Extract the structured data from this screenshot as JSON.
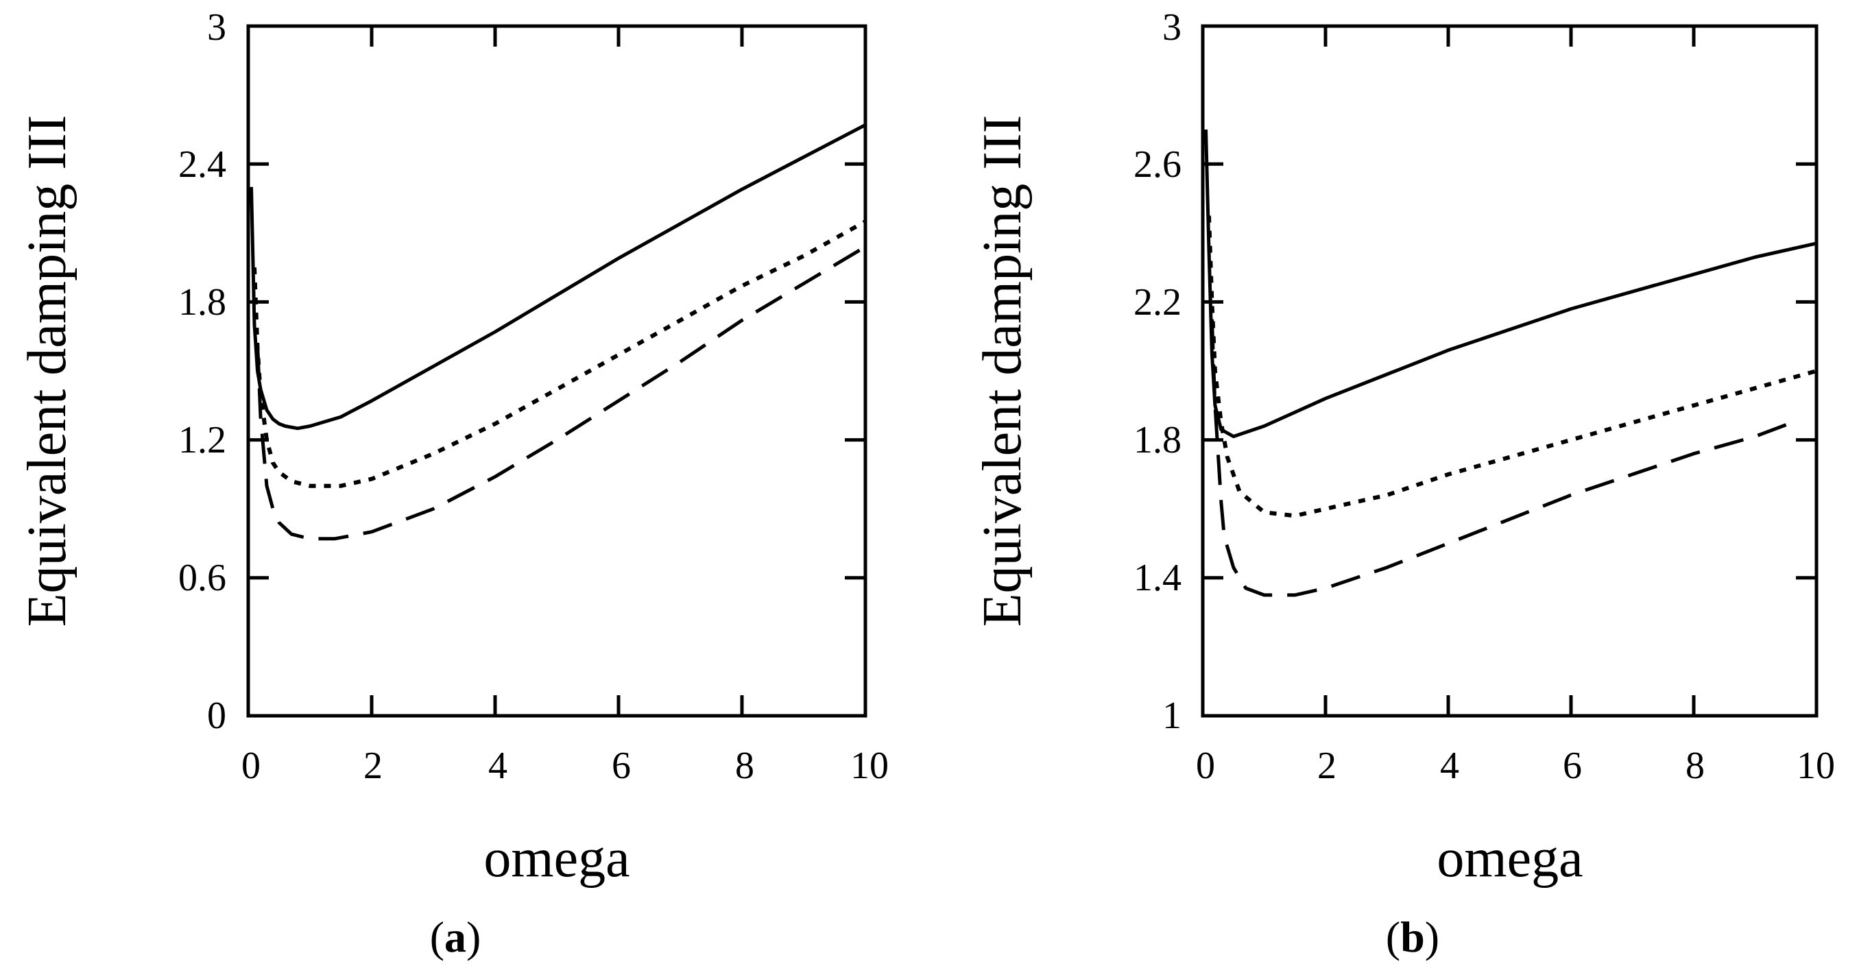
{
  "chart_data": [
    {
      "type": "line",
      "panel": "a",
      "caption_open": "(",
      "caption_letter": "a",
      "caption_close": ")",
      "xlabel": "omega",
      "ylabel": "Equivalent damping III",
      "xlim": [
        0,
        10
      ],
      "ylim": [
        0,
        3
      ],
      "xticks": [
        0,
        2,
        4,
        6,
        8,
        10
      ],
      "xtick_labels": [
        "0",
        "2",
        "4",
        "6",
        "8",
        "10"
      ],
      "yticks": [
        0,
        0.6,
        1.2,
        1.8,
        2.4,
        3
      ],
      "ytick_labels": [
        "0",
        "0.6",
        "1.2",
        "1.8",
        "2.4",
        "3"
      ],
      "series": [
        {
          "name": "solid",
          "style": "solid",
          "x": [
            0.05,
            0.1,
            0.15,
            0.2,
            0.3,
            0.4,
            0.5,
            0.6,
            0.8,
            1,
            1.5,
            2,
            3,
            4,
            5,
            6,
            7,
            8,
            9,
            10
          ],
          "y": [
            2.3,
            1.7,
            1.5,
            1.42,
            1.33,
            1.29,
            1.27,
            1.26,
            1.25,
            1.26,
            1.3,
            1.37,
            1.52,
            1.67,
            1.83,
            1.99,
            2.14,
            2.29,
            2.43,
            2.57
          ]
        },
        {
          "name": "dotted",
          "style": "dotted",
          "x": [
            0.1,
            0.15,
            0.2,
            0.3,
            0.4,
            0.5,
            0.7,
            1,
            1.5,
            2,
            3,
            4,
            5,
            6,
            7,
            8,
            9,
            10
          ],
          "y": [
            1.95,
            1.6,
            1.4,
            1.2,
            1.1,
            1.06,
            1.02,
            1.0,
            1.0,
            1.03,
            1.14,
            1.27,
            1.42,
            1.57,
            1.72,
            1.87,
            2.0,
            2.15
          ]
        },
        {
          "name": "dashed",
          "style": "dashed",
          "x": [
            0.15,
            0.2,
            0.3,
            0.4,
            0.5,
            0.7,
            1,
            1.4,
            2,
            3,
            4,
            5,
            6,
            7,
            8,
            9,
            10
          ],
          "y": [
            1.62,
            1.3,
            1.0,
            0.9,
            0.84,
            0.79,
            0.77,
            0.77,
            0.8,
            0.9,
            1.04,
            1.2,
            1.37,
            1.54,
            1.72,
            1.88,
            2.04
          ]
        }
      ]
    },
    {
      "type": "line",
      "panel": "b",
      "caption_open": "(",
      "caption_letter": "b",
      "caption_close": ")",
      "xlabel": "omega",
      "ylabel": "Equivalent damping III",
      "xlim": [
        0,
        10
      ],
      "ylim": [
        1,
        3
      ],
      "xticks": [
        0,
        2,
        4,
        6,
        8,
        10
      ],
      "xtick_labels": [
        "0",
        "2",
        "4",
        "6",
        "8",
        "10"
      ],
      "yticks": [
        1,
        1.4,
        1.8,
        2.2,
        2.6,
        3
      ],
      "ytick_labels": [
        "1",
        "1.4",
        "1.8",
        "2.2",
        "2.6",
        "3"
      ],
      "series": [
        {
          "name": "solid",
          "style": "solid",
          "x": [
            0.05,
            0.1,
            0.15,
            0.2,
            0.3,
            0.5,
            1,
            1.5,
            2,
            3,
            4,
            5,
            6,
            7,
            8,
            9,
            10
          ],
          "y": [
            2.7,
            2.35,
            2.05,
            1.9,
            1.83,
            1.81,
            1.84,
            1.88,
            1.92,
            1.99,
            2.06,
            2.12,
            2.18,
            2.23,
            2.28,
            2.33,
            2.37
          ]
        },
        {
          "name": "dotted",
          "style": "dotted",
          "x": [
            0.1,
            0.15,
            0.2,
            0.3,
            0.4,
            0.6,
            1,
            1.5,
            2,
            3,
            4,
            5,
            6,
            7,
            8,
            9,
            10
          ],
          "y": [
            2.45,
            2.2,
            2.0,
            1.85,
            1.75,
            1.65,
            1.59,
            1.58,
            1.6,
            1.64,
            1.7,
            1.75,
            1.8,
            1.85,
            1.9,
            1.95,
            2.0
          ]
        },
        {
          "name": "dashed",
          "style": "dashed",
          "x": [
            0.15,
            0.2,
            0.3,
            0.35,
            0.5,
            0.7,
            1,
            1.5,
            2,
            3,
            4,
            5,
            6,
            7,
            8,
            9,
            9.6
          ],
          "y": [
            2.15,
            1.9,
            1.62,
            1.52,
            1.43,
            1.37,
            1.35,
            1.35,
            1.37,
            1.43,
            1.5,
            1.57,
            1.64,
            1.7,
            1.76,
            1.81,
            1.85
          ]
        }
      ]
    }
  ]
}
